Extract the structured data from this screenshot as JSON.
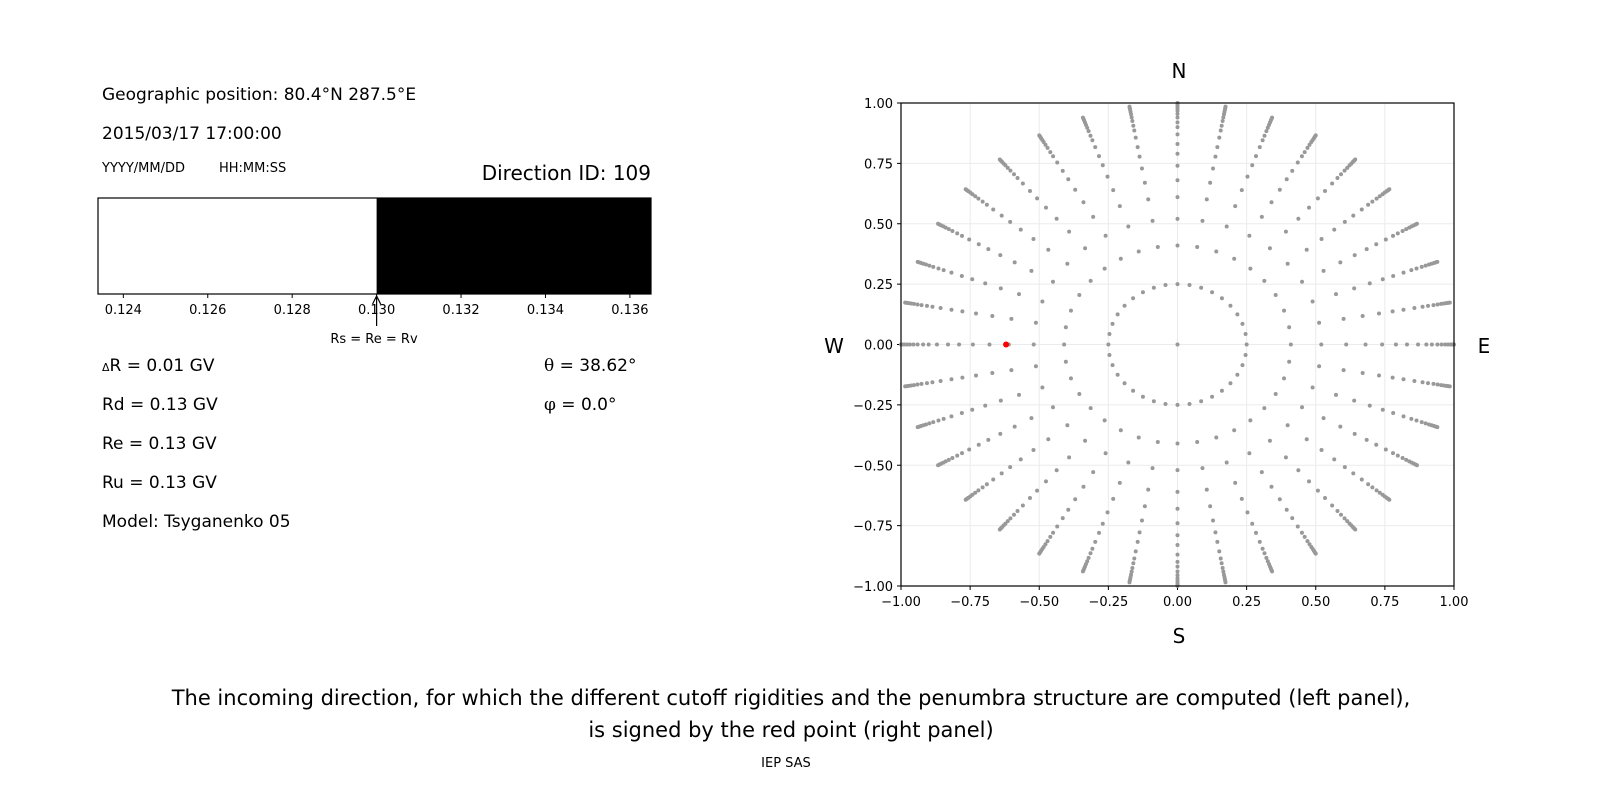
{
  "left_panel": {
    "geo_position": "Geographic position: 80.4°N 287.5°E",
    "datetime": "2015/03/17 17:00:00",
    "date_format": "YYYY/MM/DD",
    "time_format": "HH:MM:SS",
    "direction_id": "Direction ID: 109",
    "delta_r_symbol": "Δ",
    "delta_r": "R = 0.01 GV",
    "rd": "Rd = 0.13 GV",
    "re": "Re = 0.13 GV",
    "ru": "Ru = 0.13 GV",
    "model": "Model: Tsyganenko 05",
    "theta_symbol": "θ",
    "theta": " = 38.62°",
    "phi_symbol": "φ",
    "phi": " = 0.0°"
  },
  "chart_data": [
    {
      "type": "bar",
      "description_label": "Rs = Re = Rv",
      "xlim": [
        0.1234,
        0.1365
      ],
      "xticks": [
        "0.124",
        "0.126",
        "0.128",
        "0.130",
        "0.132",
        "0.134",
        "0.136"
      ],
      "segments": [
        {
          "from": 0.1234,
          "to": 0.13,
          "color": "#ffffff",
          "state": "allowed"
        },
        {
          "from": 0.13,
          "to": 0.1365,
          "color": "#000000",
          "state": "forbidden"
        }
      ],
      "arrow_at": 0.13
    },
    {
      "type": "scatter",
      "xlim": [
        -1,
        1
      ],
      "ylim": [
        -1,
        1
      ],
      "grid": true,
      "xticks": [
        "−1.00",
        "−0.75",
        "−0.50",
        "−0.25",
        "0.00",
        "0.25",
        "0.50",
        "0.75",
        "1.00"
      ],
      "yticks": [
        "−1.00",
        "−0.75",
        "−0.50",
        "−0.25",
        "0.00",
        "0.25",
        "0.50",
        "0.75",
        "1.00"
      ],
      "compass": {
        "north": "N",
        "south": "S",
        "east": "E",
        "west": "W"
      },
      "grid_points": {
        "color": "#999999",
        "center": [
          0,
          0
        ],
        "inner_ring_radius": 0.25,
        "inner_ring_step_deg": 10,
        "radial_step_deg": 10,
        "radii": [
          0.41,
          0.52,
          0.61,
          0.68,
          0.74,
          0.79,
          0.83,
          0.87,
          0.9,
          0.92,
          0.94,
          0.955,
          0.968,
          0.978,
          0.987,
          0.994,
          1.0
        ]
      },
      "selected_point": {
        "x": -0.62,
        "y": 0.0,
        "color": "#ff0000"
      }
    }
  ],
  "caption": {
    "line1": "The incoming direction, for which the different cutoff rigidities and the penumbra structure are computed (left panel),",
    "line2": "is signed by the red point (right panel)",
    "credit": "IEP SAS"
  }
}
